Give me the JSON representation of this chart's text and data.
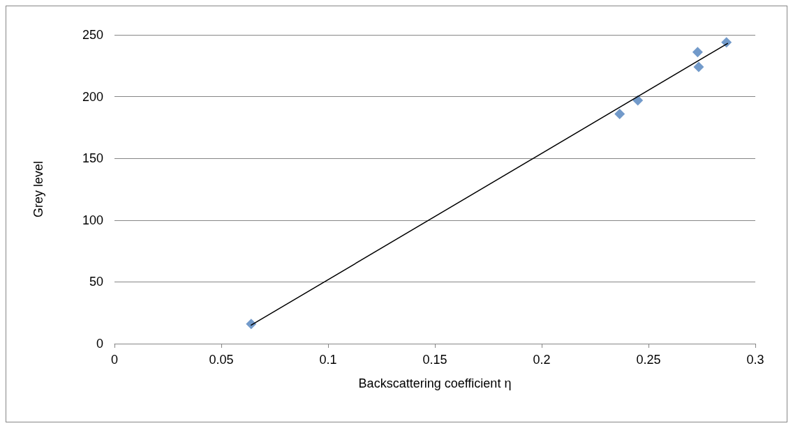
{
  "chart_data": {
    "type": "scatter",
    "xlabel": "Backscattering coefficient η",
    "ylabel": "Grey level",
    "xlim": [
      0,
      0.3
    ],
    "xticks": [
      0,
      0.05,
      0.1,
      0.15,
      0.2,
      0.25,
      0.3
    ],
    "ylim": [
      0,
      250
    ],
    "yticks": [
      0,
      50,
      100,
      150,
      200,
      250
    ],
    "grid": "y",
    "series": [
      {
        "color": "#4f81bd",
        "marker": "diamond",
        "x": [
          0.064,
          0.2365,
          0.245,
          0.273,
          0.2735,
          0.2865
        ],
        "values": [
          16,
          186,
          197,
          236,
          224,
          244
        ]
      },
      {
        "type": "line",
        "color": "#000000",
        "marker": "none",
        "line_style": "solid",
        "x": [
          0.064,
          0.287
        ],
        "values": [
          15,
          243
        ]
      }
    ]
  }
}
